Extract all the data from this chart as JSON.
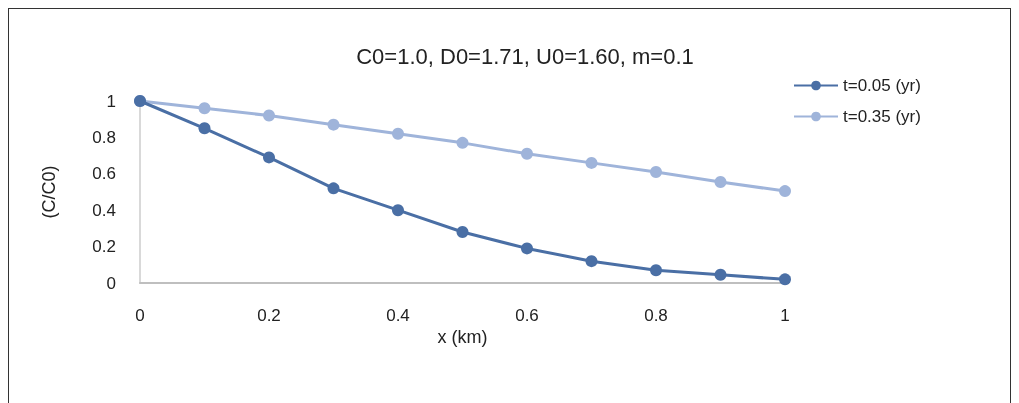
{
  "chart_data": {
    "type": "line",
    "title": "C0=1.0, D0=1.71, U0=1.60, m=0.1",
    "xlabel": "x (km)",
    "ylabel": "(C/C0)",
    "x": [
      0,
      0.1,
      0.2,
      0.3,
      0.4,
      0.5,
      0.6,
      0.7,
      0.8,
      0.9,
      1
    ],
    "series": [
      {
        "name": "t=0.05 (yr)",
        "color": "#4a6fa5",
        "values": [
          1,
          0.85,
          0.69,
          0.52,
          0.4,
          0.28,
          0.19,
          0.12,
          0.07,
          0.045,
          0.02
        ]
      },
      {
        "name": "t=0.35 (yr)",
        "color": "#9fb4da",
        "values": [
          1,
          0.96,
          0.92,
          0.87,
          0.82,
          0.77,
          0.71,
          0.66,
          0.61,
          0.555,
          0.505
        ]
      }
    ],
    "xlim": [
      0,
      1
    ],
    "xticks": [
      0,
      0.2,
      0.4,
      0.6,
      0.8,
      1
    ],
    "ylim": [
      0,
      1
    ],
    "yticks": [
      0,
      0.2,
      0.4,
      0.6,
      0.8,
      1
    ],
    "grid": false,
    "legend": "top right",
    "marker": "circle",
    "line_style": "solid"
  }
}
